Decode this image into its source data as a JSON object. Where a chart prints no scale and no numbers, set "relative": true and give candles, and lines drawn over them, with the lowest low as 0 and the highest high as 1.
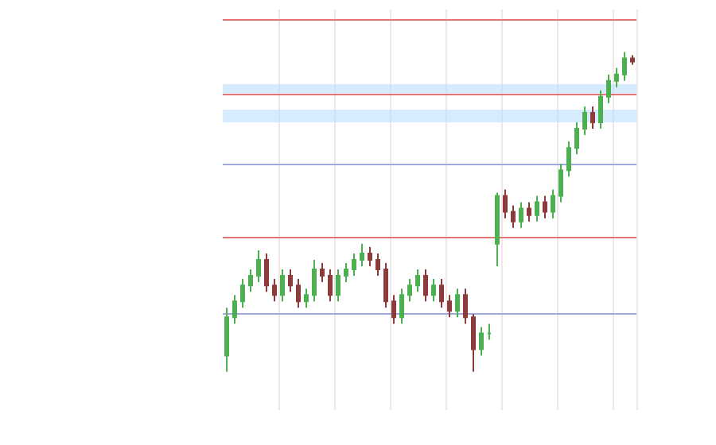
{
  "chart_data": {
    "type": "candlestick",
    "relative": true,
    "grid": "x",
    "categories": [
      null,
      null,
      null,
      null,
      null,
      null,
      null,
      null,
      null,
      null,
      null,
      null,
      null,
      null,
      null,
      null,
      null,
      null,
      null,
      null,
      null,
      null,
      null,
      null,
      null,
      null,
      null,
      null,
      null,
      null,
      null,
      null,
      null,
      null,
      null,
      null,
      null,
      null,
      null,
      null,
      null,
      null,
      null,
      null,
      null,
      null,
      null,
      null,
      null,
      null,
      null,
      null
    ],
    "ohlc": [
      [
        0.05,
        0.2,
        0.0,
        0.17
      ],
      [
        0.17,
        0.24,
        0.15,
        0.22
      ],
      [
        0.22,
        0.29,
        0.2,
        0.27
      ],
      [
        0.27,
        0.32,
        0.25,
        0.3
      ],
      [
        0.3,
        0.38,
        0.28,
        0.35
      ],
      [
        0.35,
        0.37,
        0.25,
        0.27
      ],
      [
        0.27,
        0.29,
        0.22,
        0.24
      ],
      [
        0.24,
        0.32,
        0.22,
        0.3
      ],
      [
        0.3,
        0.32,
        0.25,
        0.27
      ],
      [
        0.27,
        0.29,
        0.2,
        0.22
      ],
      [
        0.22,
        0.26,
        0.2,
        0.24
      ],
      [
        0.24,
        0.35,
        0.22,
        0.32
      ],
      [
        0.32,
        0.34,
        0.28,
        0.3
      ],
      [
        0.3,
        0.32,
        0.22,
        0.24
      ],
      [
        0.24,
        0.32,
        0.22,
        0.3
      ],
      [
        0.3,
        0.34,
        0.28,
        0.32
      ],
      [
        0.32,
        0.37,
        0.3,
        0.35
      ],
      [
        0.35,
        0.4,
        0.33,
        0.37
      ],
      [
        0.37,
        0.39,
        0.33,
        0.35
      ],
      [
        0.35,
        0.37,
        0.3,
        0.32
      ],
      [
        0.32,
        0.34,
        0.2,
        0.22
      ],
      [
        0.22,
        0.24,
        0.15,
        0.17
      ],
      [
        0.17,
        0.26,
        0.15,
        0.24
      ],
      [
        0.24,
        0.29,
        0.22,
        0.27
      ],
      [
        0.27,
        0.32,
        0.25,
        0.3
      ],
      [
        0.3,
        0.32,
        0.22,
        0.24
      ],
      [
        0.24,
        0.29,
        0.22,
        0.27
      ],
      [
        0.27,
        0.29,
        0.2,
        0.22
      ],
      [
        0.22,
        0.24,
        0.17,
        0.19
      ],
      [
        0.19,
        0.26,
        0.17,
        0.24
      ],
      [
        0.24,
        0.26,
        0.15,
        0.17
      ],
      [
        0.17,
        0.18,
        0.0,
        0.07
      ],
      [
        0.07,
        0.14,
        0.05,
        0.12
      ],
      [
        0.12,
        0.15,
        0.1,
        0.12
      ],
      [
        0.4,
        0.56,
        0.33,
        0.55
      ],
      [
        0.55,
        0.57,
        0.48,
        0.5
      ],
      [
        0.5,
        0.52,
        0.45,
        0.47
      ],
      [
        0.47,
        0.53,
        0.45,
        0.51
      ],
      [
        0.51,
        0.53,
        0.47,
        0.49
      ],
      [
        0.49,
        0.55,
        0.47,
        0.53
      ],
      [
        0.53,
        0.55,
        0.48,
        0.5
      ],
      [
        0.5,
        0.57,
        0.48,
        0.55
      ],
      [
        0.55,
        0.65,
        0.53,
        0.63
      ],
      [
        0.63,
        0.72,
        0.61,
        0.7
      ],
      [
        0.7,
        0.78,
        0.68,
        0.76
      ],
      [
        0.76,
        0.83,
        0.74,
        0.81
      ],
      [
        0.81,
        0.83,
        0.76,
        0.78
      ],
      [
        0.78,
        0.88,
        0.76,
        0.86
      ],
      [
        0.86,
        0.93,
        0.84,
        0.91
      ],
      [
        0.91,
        0.95,
        0.89,
        0.93
      ],
      [
        0.93,
        1.0,
        0.91,
        0.98
      ],
      [
        0.98,
        0.99,
        0.96,
        0.97
      ]
    ],
    "ref_lines": [
      {
        "axis": "y",
        "value": 1.1,
        "color": "#e57373"
      },
      {
        "axis": "y",
        "value": 0.87,
        "color": "#e57373"
      },
      {
        "axis": "y",
        "value": 0.65,
        "color": "#9fa8da"
      },
      {
        "axis": "y",
        "value": 0.42,
        "color": "#e57373"
      },
      {
        "axis": "y",
        "value": 0.18,
        "color": "#9fa8da"
      }
    ],
    "bands": [
      {
        "axis": "y",
        "from": 0.87,
        "to": 0.9,
        "color": "#bbdefb"
      },
      {
        "axis": "y",
        "from": 0.78,
        "to": 0.82,
        "color": "#bbdefb"
      }
    ]
  }
}
